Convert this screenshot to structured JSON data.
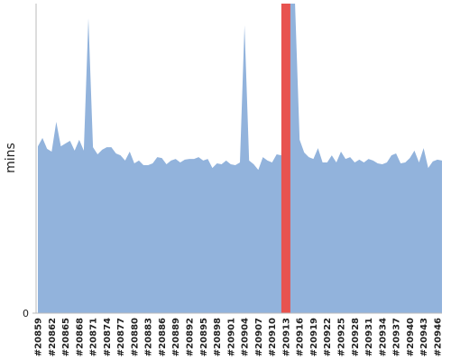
{
  "chart_data": {
    "type": "area",
    "ylabel": "mins",
    "categories": [
      "#20859",
      null,
      null,
      "#20862",
      null,
      null,
      "#20865",
      null,
      null,
      "#20868",
      null,
      null,
      "#20871",
      null,
      null,
      "#20874",
      null,
      null,
      "#20877",
      null,
      null,
      "#20880",
      null,
      null,
      "#20883",
      null,
      null,
      "#20886",
      null,
      null,
      "#20889",
      null,
      null,
      "#20892",
      null,
      null,
      "#20895",
      null,
      null,
      "#20898",
      null,
      null,
      "#20901",
      null,
      null,
      "#20904",
      null,
      null,
      "#20907",
      null,
      null,
      "#20910",
      null,
      null,
      "#20913",
      null,
      null,
      "#20916",
      null,
      null,
      "#20919",
      null,
      null,
      "#20922",
      null,
      null,
      "#20925",
      null,
      null,
      "#20928",
      null,
      null,
      "#20931",
      null,
      null,
      "#20934",
      null,
      null,
      "#20937",
      null,
      null,
      "#20940",
      null,
      null,
      "#20943",
      null,
      null,
      "#20946",
      null
    ],
    "values": [
      53.9,
      56.6,
      53.1,
      52.2,
      61.8,
      53.9,
      54.8,
      55.7,
      52.5,
      56.0,
      52.5,
      95.3,
      53.6,
      51.3,
      52.8,
      53.6,
      53.6,
      51.6,
      51.0,
      49.3,
      52.2,
      48.4,
      49.3,
      47.8,
      47.8,
      48.4,
      50.4,
      50.1,
      48.1,
      49.3,
      49.8,
      48.7,
      49.6,
      49.8,
      49.8,
      50.4,
      49.3,
      49.8,
      46.9,
      48.4,
      48.1,
      49.3,
      48.1,
      47.8,
      48.7,
      93.0,
      49.3,
      48.1,
      46.3,
      50.4,
      49.3,
      48.7,
      51.3,
      51.0,
      100,
      100,
      100,
      56.0,
      51.9,
      50.4,
      49.8,
      53.3,
      48.7,
      48.7,
      51.0,
      48.7,
      52.2,
      49.8,
      50.4,
      48.7,
      49.6,
      48.7,
      49.8,
      49.3,
      48.4,
      48.1,
      48.7,
      51.0,
      51.6,
      48.4,
      48.7,
      50.1,
      52.5,
      48.7,
      53.3,
      46.9,
      49.0,
      49.6,
      49.3
    ],
    "color": "#92b3dc",
    "highlight": {
      "index": 54,
      "color": "#e8534f"
    },
    "ylim": [
      0,
      100
    ],
    "yticks": [
      0
    ]
  }
}
